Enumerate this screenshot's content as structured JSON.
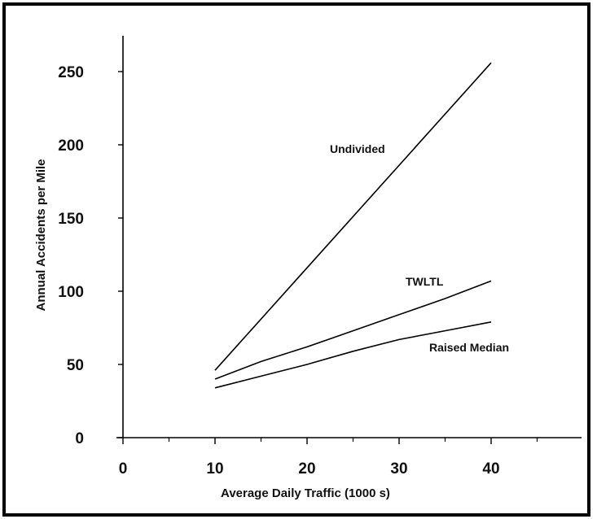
{
  "chart_data": {
    "type": "line",
    "title": "",
    "xlabel": "Average Daily Traffic (1000 s)",
    "ylabel": "Annual Accidents per Mile",
    "xlim": [
      0,
      50
    ],
    "ylim": [
      0,
      270
    ],
    "x_ticks_major": [
      0,
      10,
      20,
      30,
      40
    ],
    "x_ticks_minor": [
      5,
      15,
      25,
      35,
      45
    ],
    "y_ticks": [
      0,
      50,
      100,
      150,
      200,
      250
    ],
    "grid": false,
    "legend": "none (series labeled inline)",
    "series": [
      {
        "name": "Undivided",
        "x": [
          10,
          40
        ],
        "y": [
          46,
          256
        ]
      },
      {
        "name": "TWLTL",
        "x": [
          10,
          15,
          20,
          25,
          30,
          35,
          40
        ],
        "y": [
          40,
          52,
          62,
          73,
          84,
          95,
          107
        ]
      },
      {
        "name": "Raised Median",
        "x": [
          10,
          15,
          20,
          25,
          30,
          35,
          40
        ],
        "y": [
          34,
          42,
          50,
          59,
          67,
          73,
          79
        ]
      }
    ]
  },
  "colors": {
    "line": "#000000",
    "background": "#ffffff"
  }
}
